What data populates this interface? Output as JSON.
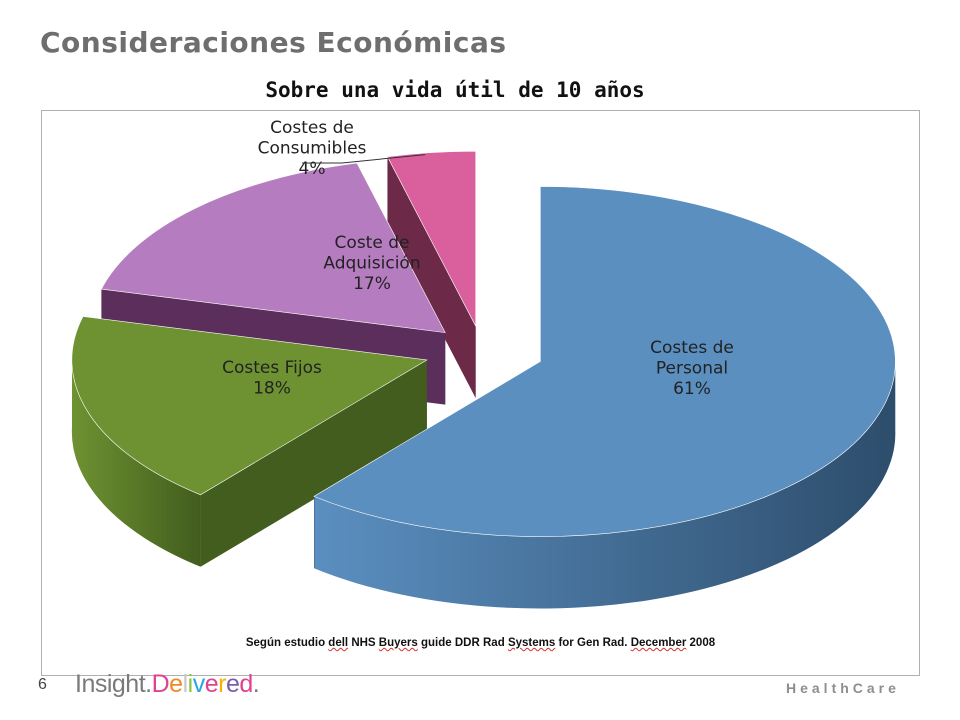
{
  "slide": {
    "title": "Consideraciones Económicas",
    "page_number": "6",
    "logo_text": [
      "Insight.",
      "Delivered."
    ],
    "division": "HealthCare"
  },
  "chart_data": {
    "type": "pie",
    "style": "3d-exploded",
    "title": "Sobre una vida útil de 10 años",
    "categories": [
      "Costes de Personal",
      "Costes Fijos",
      "Coste de Adquisición",
      "Costes de Consumibles"
    ],
    "values": [
      61,
      18,
      17,
      4
    ],
    "unit": "%",
    "labels": [
      {
        "lines": [
          "Costes de",
          "Personal",
          "61%"
        ]
      },
      {
        "lines": [
          "Costes Fijos",
          "18%"
        ]
      },
      {
        "lines": [
          "Coste de",
          "Adquisición",
          "17%"
        ]
      },
      {
        "lines": [
          "Costes de",
          "Consumibles",
          "4%"
        ]
      }
    ],
    "colors": [
      "#5b8fc0",
      "#6e9232",
      "#b67cc0",
      "#d9609d"
    ],
    "side_colors": [
      "#2d4d6c",
      "#425d1d",
      "#5b2e5c",
      "#6c2a48"
    ],
    "legend": "none",
    "source_note": "Según estudio dell NHS Buyers guide DDR Rad Systems for Gen Rad. December 2008"
  }
}
